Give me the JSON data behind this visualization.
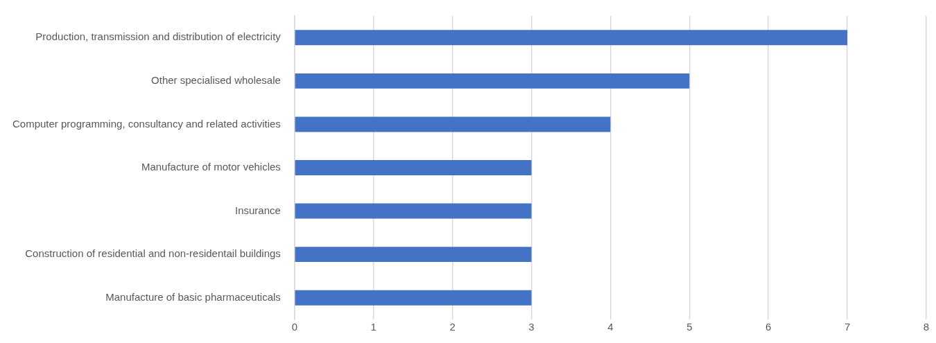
{
  "chart_data": {
    "type": "bar",
    "orientation": "horizontal",
    "categories": [
      "Production, transmission and distribution of electricity",
      "Other specialised wholesale",
      "Computer programming, consultancy and related activities",
      "Manufacture of motor vehicles",
      "Insurance",
      "Construction of residential and non-residentail buildings",
      "Manufacture of basic pharmaceuticals"
    ],
    "values": [
      7,
      5,
      4,
      3,
      3,
      3,
      3
    ],
    "color": "#4472c4",
    "xlim": [
      0,
      8
    ],
    "xticks": [
      0,
      1,
      2,
      3,
      4,
      5,
      6,
      7,
      8
    ],
    "grid": "x",
    "legend": false
  }
}
